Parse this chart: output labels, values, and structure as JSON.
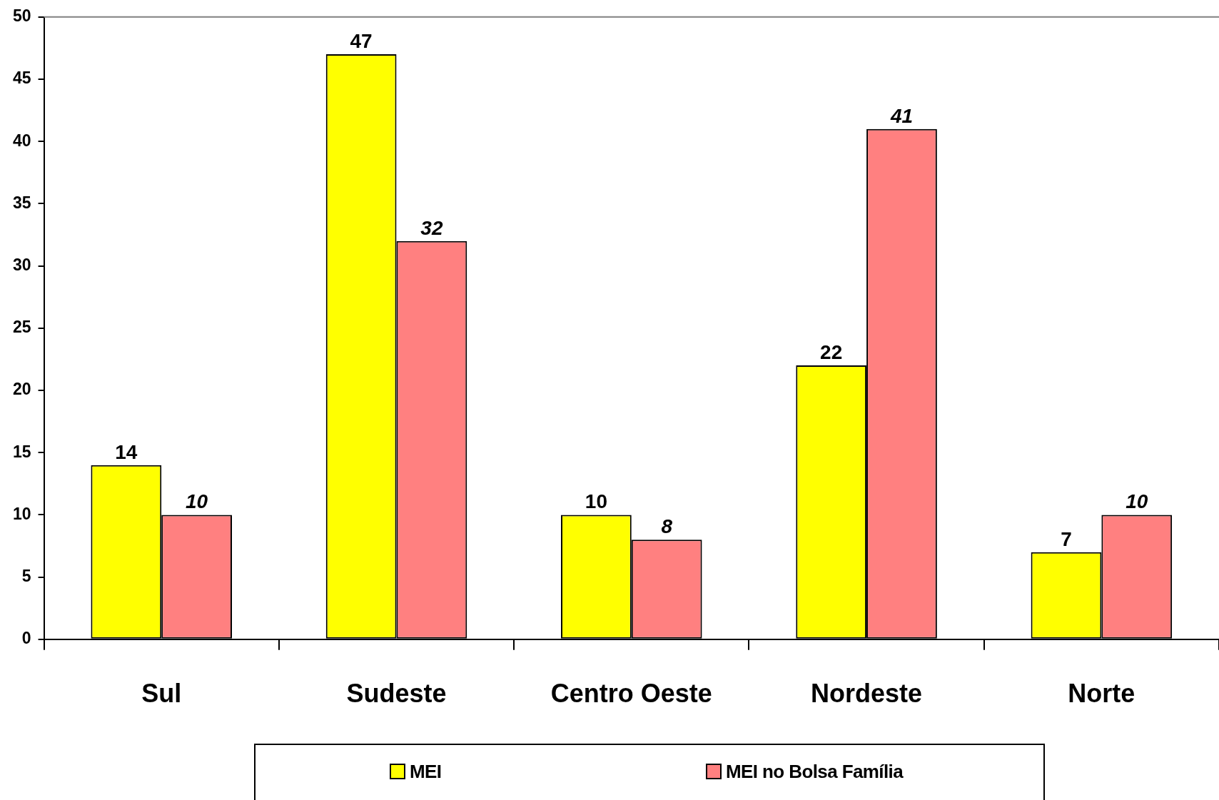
{
  "chart_data": {
    "type": "bar",
    "categories": [
      "Sul",
      "Sudeste",
      "Centro Oeste",
      "Nordeste",
      "Norte"
    ],
    "series": [
      {
        "name": "MEI",
        "color": "#ffff00",
        "values": [
          14,
          47,
          10,
          22,
          7
        ]
      },
      {
        "name": "MEI no Bolsa Família",
        "color": "#ff8080",
        "values": [
          10,
          32,
          8,
          41,
          10
        ]
      }
    ],
    "ylim": [
      0,
      50
    ],
    "yticks": [
      0,
      5,
      10,
      15,
      20,
      25,
      30,
      35,
      40,
      45,
      50
    ],
    "grid": false,
    "legend": "bottom",
    "data_labels": true
  }
}
